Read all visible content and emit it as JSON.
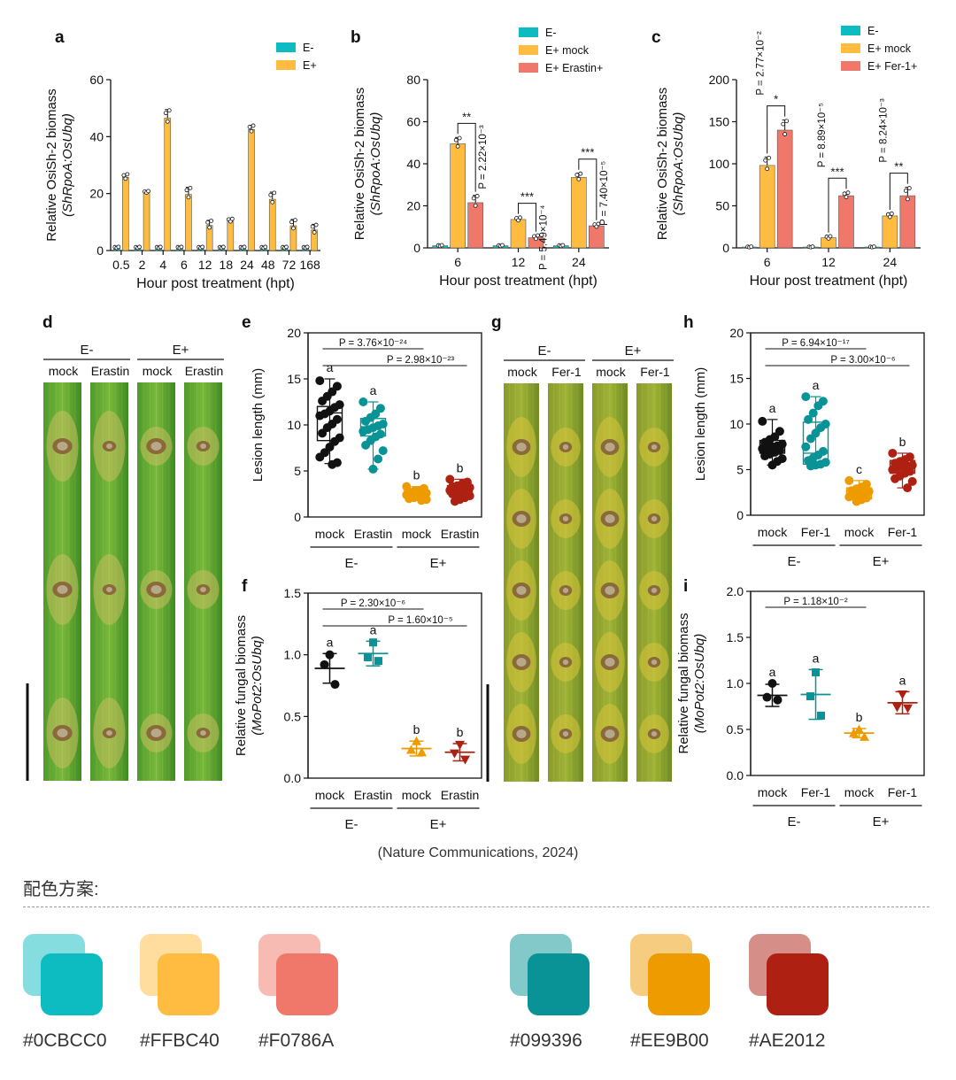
{
  "caption": "(Nature Communications, 2024)",
  "palette_title": "配色方案:",
  "palette": [
    {
      "label": "#0CBCC0",
      "color": "#0CBCC0",
      "light": "#86DDDF"
    },
    {
      "label": "#FFBC40",
      "color": "#FFBC40",
      "light": "#FFDD9F"
    },
    {
      "label": "#F0786A",
      "color": "#F0786A",
      "light": "#F7BBB4"
    },
    {
      "label": "#099396",
      "color": "#099396",
      "light": "#84C9CA"
    },
    {
      "label": "#EE9B00",
      "color": "#EE9B00",
      "light": "#F6CD80"
    },
    {
      "label": "#AE2012",
      "color": "#AE2012",
      "light": "#D68F88"
    }
  ],
  "photo_panels": [
    {
      "letter": "d",
      "groups": [
        "E-",
        "E+"
      ],
      "lanes": [
        "mock",
        "Erastin",
        "mock",
        "Erastin"
      ]
    },
    {
      "letter": "g",
      "groups": [
        "E-",
        "E+"
      ],
      "lanes": [
        "mock",
        "Fer-1",
        "mock",
        "Fer-1"
      ]
    }
  ],
  "chart_data": [
    {
      "panel": "a",
      "type": "bar",
      "ylabel": "Relative OsiSh-2 biomass",
      "ylabel2": "(ShRpoA:OsUbq)",
      "xlabel": "Hour post treatment (hpt)",
      "ylim": [
        0,
        60
      ],
      "yticks": [
        "0",
        "20",
        "40",
        "60"
      ],
      "categories": [
        "0.5",
        "2",
        "4",
        "6",
        "12",
        "18",
        "24",
        "48",
        "72",
        "168"
      ],
      "legend": [
        "E-",
        "E+"
      ],
      "series": [
        {
          "name": "E-",
          "color": "#0CBCC0",
          "values": [
            1,
            1,
            1,
            1,
            1,
            1,
            1,
            1,
            1,
            1
          ],
          "err": [
            0.3,
            0.3,
            0.3,
            0.3,
            0.3,
            0.3,
            0.3,
            0.3,
            0.3,
            0.3
          ]
        },
        {
          "name": "E+",
          "color": "#FFBC40",
          "values": [
            25.7,
            20.5,
            46.5,
            19.7,
            8.8,
            10.5,
            42.5,
            18,
            8.7,
            7.2
          ],
          "err": [
            1.2,
            0.4,
            3,
            2.5,
            1.8,
            0.7,
            1.5,
            2.5,
            2.2,
            2
          ]
        }
      ]
    },
    {
      "panel": "b",
      "type": "bar",
      "ylabel": "Relative OsiSh-2 biomass",
      "ylabel2": "(ShRpoA:OsUbq)",
      "xlabel": "Hour post treatment (hpt)",
      "ylim": [
        0,
        80
      ],
      "yticks": [
        "0",
        "20",
        "40",
        "60",
        "80"
      ],
      "categories": [
        "6",
        "12",
        "24"
      ],
      "legend": [
        "E-",
        "E+ mock",
        "E+ Erastin+"
      ],
      "series": [
        {
          "name": "E-",
          "color": "#0CBCC0",
          "values": [
            1,
            1,
            1
          ],
          "err": [
            0.3,
            0.3,
            0.3
          ]
        },
        {
          "name": "E+ mock",
          "color": "#FFBC40",
          "values": [
            49.5,
            13.5,
            33.5
          ],
          "err": [
            3,
            1,
            2
          ]
        },
        {
          "name": "E+ Erastin+",
          "color": "#F0786A",
          "values": [
            21.5,
            4.8,
            10.5
          ],
          "err": [
            3.5,
            1.2,
            1
          ]
        }
      ],
      "annotations": [
        {
          "stars": "**",
          "p": "P = 2.22×10⁻³"
        },
        {
          "stars": "***",
          "p": "P = 5.49×10⁻⁴"
        },
        {
          "stars": "***",
          "p": "P = 7.40×10⁻⁵"
        }
      ]
    },
    {
      "panel": "c",
      "type": "bar",
      "ylabel": "Relative OsiSh-2 biomass",
      "ylabel2": "(ShRpoA:OsUbq)",
      "xlabel": "Hour post treatment (hpt)",
      "ylim": [
        0,
        200
      ],
      "yticks": [
        "0",
        "50",
        "100",
        "150",
        "200"
      ],
      "categories": [
        "6",
        "12",
        "24"
      ],
      "legend": [
        "E-",
        "E+ mock",
        "E+ Fer-1+"
      ],
      "series": [
        {
          "name": "E-",
          "color": "#0CBCC0",
          "values": [
            1,
            1,
            1
          ],
          "err": [
            0.5,
            0.5,
            0.5
          ]
        },
        {
          "name": "E+ mock",
          "color": "#FFBC40",
          "values": [
            98,
            12,
            38
          ],
          "err": [
            10,
            2,
            3
          ]
        },
        {
          "name": "E+ Fer-1+",
          "color": "#F0786A",
          "values": [
            140,
            62,
            62
          ],
          "err": [
            12,
            4,
            10
          ]
        }
      ],
      "annotations": [
        {
          "stars": "*",
          "p": "P = 2.77×10⁻²"
        },
        {
          "stars": "***",
          "p": "P = 8.89×10⁻⁵"
        },
        {
          "stars": "**",
          "p": "P = 8.24×10⁻³"
        }
      ]
    },
    {
      "panel": "e",
      "type": "scatter",
      "ylabel": "Lesion length (mm)",
      "ylabel2": "",
      "ylim": [
        0,
        20
      ],
      "yticks": [
        "0",
        "5",
        "10",
        "15",
        "20"
      ],
      "categories": [
        "mock",
        "Erastin",
        "mock",
        "Erastin"
      ],
      "groups": [
        "E-",
        "E+"
      ],
      "letters": [
        "a",
        "a",
        "b",
        "b"
      ],
      "colors": [
        "#111111",
        "#099396",
        "#EE9B00",
        "#AE2012"
      ],
      "box": [
        {
          "q1": 8.3,
          "q3": 12,
          "median": 11.3,
          "min": 5.8,
          "max": 15
        },
        {
          "q1": 8.8,
          "q3": 10.7,
          "median": 9.8,
          "min": 5.2,
          "max": 12.5
        },
        {
          "q1": 2.2,
          "q3": 2.8,
          "median": 2.5,
          "min": 1.8,
          "max": 3.3
        },
        {
          "q1": 2.5,
          "q3": 3.4,
          "median": 3,
          "min": 1.7,
          "max": 4.1
        }
      ],
      "points": [
        [
          14.8,
          14.2,
          13.6,
          13.1,
          12.6,
          12.2,
          11.9,
          11.5,
          11.2,
          11,
          10.6,
          10.1,
          9.7,
          9.1,
          8.6,
          8.2,
          7.6,
          7,
          6.5,
          5.9,
          5.7
        ],
        [
          12.5,
          11.8,
          11.2,
          10.8,
          10.4,
          10.1,
          9.9,
          9.7,
          9.5,
          9.3,
          9,
          8.7,
          8.3,
          7.8,
          7.2,
          6.3,
          5.2
        ],
        [
          3.3,
          3.1,
          2.9,
          2.8,
          2.7,
          2.6,
          2.5,
          2.5,
          2.4,
          2.4,
          2.3,
          2.2,
          2.1,
          2,
          1.9,
          1.8
        ],
        [
          4.1,
          3.8,
          3.6,
          3.4,
          3.3,
          3.2,
          3.1,
          3,
          3,
          2.9,
          2.8,
          2.7,
          2.6,
          2.5,
          2.3,
          2.1,
          1.9,
          1.7
        ]
      ],
      "comparisons": [
        {
          "from": 0,
          "to": 2,
          "label": "P = 3.76×10⁻²⁴"
        },
        {
          "from": 0,
          "to": 3,
          "label": "P = 2.98×10⁻²³"
        }
      ]
    },
    {
      "panel": "f",
      "type": "scatter",
      "ylabel": "Relative fungal biomass",
      "ylabel2": "(MoPot2:OsUbq)",
      "ylim": [
        0,
        1.5
      ],
      "yticks": [
        "0.0",
        "0.5",
        "1.0",
        "1.5"
      ],
      "categories": [
        "mock",
        "Erastin",
        "mock",
        "Erastin"
      ],
      "groups": [
        "E-",
        "E+"
      ],
      "letters": [
        "a",
        "a",
        "b",
        "b"
      ],
      "colors": [
        "#111111",
        "#099396",
        "#EE9B00",
        "#AE2012"
      ],
      "means": [
        0.89,
        1.01,
        0.24,
        0.21
      ],
      "sd": [
        0.12,
        0.1,
        0.06,
        0.07
      ],
      "points": [
        [
          1.0,
          0.92,
          0.76
        ],
        [
          1.1,
          0.98,
          0.95
        ],
        [
          0.3,
          0.23,
          0.21
        ],
        [
          0.27,
          0.2,
          0.15
        ]
      ],
      "comparisons": [
        {
          "from": 0,
          "to": 2,
          "label": "P = 2.30×10⁻⁶"
        },
        {
          "from": 0,
          "to": 3,
          "label": "P = 1.60×10⁻⁵"
        }
      ]
    },
    {
      "panel": "h",
      "type": "scatter",
      "ylabel": "Lesion length (mm)",
      "ylabel2": "",
      "ylim": [
        0,
        20
      ],
      "yticks": [
        "0",
        "5",
        "10",
        "15",
        "20"
      ],
      "categories": [
        "mock",
        "Fer-1",
        "mock",
        "Fer-1"
      ],
      "groups": [
        "E-",
        "E+"
      ],
      "letters": [
        "a",
        "a",
        "c",
        "b"
      ],
      "colors": [
        "#111111",
        "#099396",
        "#EE9B00",
        "#AE2012"
      ],
      "box": [
        {
          "q1": 6.8,
          "q3": 8.2,
          "median": 7.5,
          "min": 5.5,
          "max": 10.5
        },
        {
          "q1": 5.6,
          "q3": 10.2,
          "median": 6.8,
          "min": 5.3,
          "max": 13
        },
        {
          "q1": 1.8,
          "q3": 3,
          "median": 2.4,
          "min": 1.5,
          "max": 3.8
        },
        {
          "q1": 4.6,
          "q3": 6,
          "median": 5.3,
          "min": 3,
          "max": 6.8
        }
      ],
      "points": [
        [
          10.3,
          9.2,
          8.6,
          8.3,
          8,
          7.8,
          7.6,
          7.5,
          7.4,
          7.3,
          7.1,
          6.9,
          6.7,
          6.5,
          6.2,
          5.9,
          5.5
        ],
        [
          13,
          12.5,
          12,
          11.2,
          10.5,
          10,
          9.6,
          9,
          8.4,
          7.5,
          7,
          6.6,
          6.3,
          6,
          5.8,
          5.6,
          5.5,
          5.4
        ],
        [
          3.8,
          3.4,
          3.1,
          2.9,
          2.7,
          2.6,
          2.4,
          2.3,
          2.2,
          2,
          1.9,
          1.7,
          1.5
        ],
        [
          6.8,
          6.4,
          6.1,
          5.9,
          5.7,
          5.5,
          5.4,
          5.3,
          5.1,
          5,
          4.8,
          4.6,
          4.3,
          4,
          3.7,
          3
        ]
      ],
      "comparisons": [
        {
          "from": 0,
          "to": 2,
          "label": "P = 6.94×10⁻¹⁷"
        },
        {
          "from": 0,
          "to": 3,
          "label": "P = 3.00×10⁻⁶"
        }
      ]
    },
    {
      "panel": "i",
      "type": "scatter",
      "ylabel": "Relative fungal biomass",
      "ylabel2": "(MoPot2:OsUbq)",
      "ylim": [
        0,
        2
      ],
      "yticks": [
        "0.0",
        "0.5",
        "1.0",
        "1.5",
        "2.0"
      ],
      "categories": [
        "mock",
        "Fer-1",
        "mock",
        "Fer-1"
      ],
      "groups": [
        "E-",
        "E+"
      ],
      "letters": [
        "a",
        "a",
        "b",
        "a"
      ],
      "colors": [
        "#111111",
        "#099396",
        "#EE9B00",
        "#AE2012"
      ],
      "means": [
        0.87,
        0.88,
        0.46,
        0.79
      ],
      "sd": [
        0.12,
        0.27,
        0.05,
        0.12
      ],
      "points": [
        [
          1.0,
          0.85,
          0.82
        ],
        [
          1.12,
          0.86,
          0.65
        ],
        [
          0.5,
          0.46,
          0.42
        ],
        [
          0.88,
          0.74,
          0.73
        ]
      ],
      "comparisons": [
        {
          "from": 0,
          "to": 2,
          "label": "P = 1.18×10⁻²"
        }
      ]
    }
  ]
}
